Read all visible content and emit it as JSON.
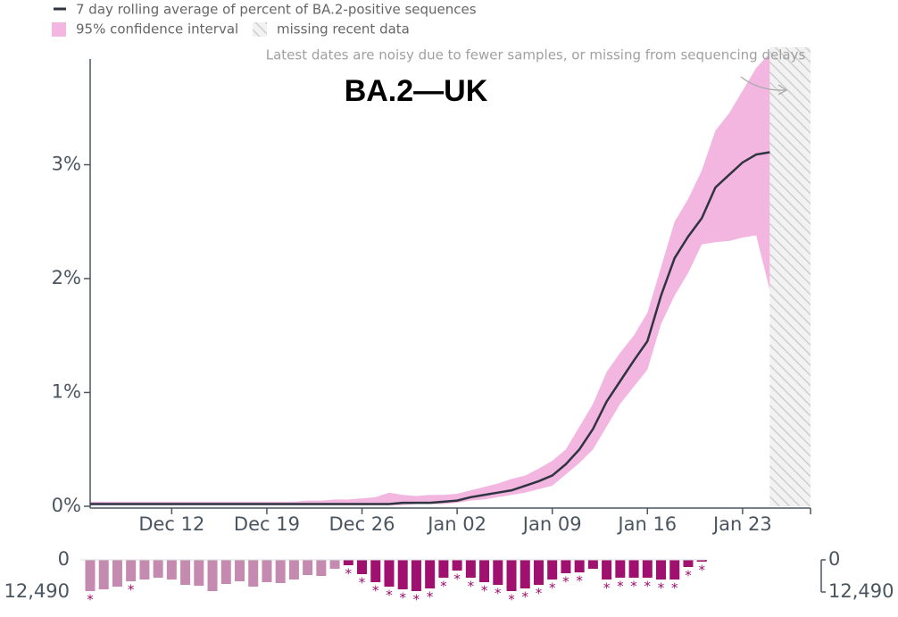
{
  "chart_data": {
    "type": "line",
    "title": "BA.2—UK",
    "annotation": "Latest dates are noisy due to fewer samples, or missing from sequencing delays",
    "categories": [
      null,
      null,
      null,
      null,
      null,
      null,
      "Dec 12",
      null,
      null,
      null,
      null,
      null,
      null,
      "Dec 19",
      null,
      null,
      null,
      null,
      null,
      null,
      "Dec 26",
      null,
      null,
      null,
      null,
      null,
      null,
      "Jan 02",
      null,
      null,
      null,
      null,
      null,
      null,
      "Jan 09",
      null,
      null,
      null,
      null,
      null,
      null,
      "Jan 16",
      null,
      null,
      null,
      null,
      null,
      null,
      "Jan 23",
      null,
      null,
      null,
      null,
      null
    ],
    "series": [
      {
        "name": "7 day rolling average of percent of BA.2-positive sequences",
        "color": "#2e3440",
        "values": [
          0.02,
          0.02,
          0.02,
          0.02,
          0.02,
          0.02,
          0.02,
          0.02,
          0.02,
          0.02,
          0.02,
          0.02,
          0.02,
          0.02,
          0.02,
          0.02,
          0.02,
          0.02,
          0.02,
          0.02,
          0.02,
          0.02,
          0.02,
          0.03,
          0.03,
          0.03,
          0.04,
          0.05,
          0.08,
          0.1,
          0.12,
          0.14,
          0.18,
          0.22,
          0.27,
          0.37,
          0.5,
          0.68,
          0.92,
          1.1,
          1.28,
          1.45,
          1.85,
          2.18,
          2.37,
          2.53,
          2.8,
          2.91,
          3.02,
          3.09,
          3.11,
          null,
          null,
          null
        ]
      }
    ],
    "band": {
      "name": "95% confidence interval",
      "color": "#f2b6e0",
      "lower": [
        0.01,
        0.01,
        0.01,
        0.01,
        0.01,
        0.01,
        0.01,
        0.01,
        0.01,
        0.01,
        0.01,
        0.01,
        0.01,
        0.01,
        0.01,
        0.01,
        0.01,
        0.01,
        0.01,
        0.01,
        0.01,
        0.01,
        0.01,
        0.01,
        0.02,
        0.02,
        0.02,
        0.03,
        0.05,
        0.06,
        0.08,
        0.1,
        0.12,
        0.15,
        0.18,
        0.28,
        0.38,
        0.5,
        0.7,
        0.9,
        1.05,
        1.2,
        1.6,
        1.85,
        2.05,
        2.3,
        2.32,
        2.33,
        2.36,
        2.38,
        1.9,
        null,
        null,
        null
      ],
      "upper": [
        0.04,
        0.04,
        0.04,
        0.04,
        0.04,
        0.04,
        0.04,
        0.04,
        0.04,
        0.04,
        0.04,
        0.04,
        0.04,
        0.04,
        0.04,
        0.04,
        0.05,
        0.05,
        0.06,
        0.06,
        0.07,
        0.08,
        0.12,
        0.1,
        0.09,
        0.1,
        0.1,
        0.11,
        0.14,
        0.17,
        0.2,
        0.24,
        0.27,
        0.33,
        0.4,
        0.5,
        0.7,
        0.9,
        1.18,
        1.35,
        1.5,
        1.7,
        2.1,
        2.5,
        2.7,
        2.95,
        3.3,
        3.45,
        3.65,
        3.85,
        3.98,
        null,
        null,
        null
      ]
    },
    "missing": {
      "name": "missing recent data"
    },
    "ylim": [
      0,
      4
    ],
    "yticks": [
      {
        "value": 0,
        "label": "0%"
      },
      {
        "value": 1,
        "label": "1%"
      },
      {
        "value": 2,
        "label": "2%"
      },
      {
        "value": 3,
        "label": "3%"
      }
    ],
    "bars": {
      "type": "bar",
      "flag_label": "*",
      "values": [
        12145,
        11451,
        10410,
        8328,
        7634,
        6940,
        7634,
        9716,
        10063,
        12145,
        9369,
        8328,
        10410,
        8675,
        9022,
        7634,
        5899,
        6246,
        3470,
        2082,
        5552,
        8675,
        10410,
        11451,
        12145,
        11104,
        6940,
        4164,
        6940,
        8675,
        9716,
        12145,
        11104,
        9716,
        7634,
        5205,
        4858,
        3470,
        7634,
        6940,
        6940,
        6940,
        7634,
        7634,
        2776,
        694,
        null,
        null,
        null,
        null,
        null,
        null,
        null,
        null
      ],
      "colors": [
        "#c48ab0",
        "#c48ab0",
        "#c48ab0",
        "#c48ab0",
        "#c48ab0",
        "#c48ab0",
        "#c48ab0",
        "#c48ab0",
        "#c48ab0",
        "#c48ab0",
        "#c48ab0",
        "#c48ab0",
        "#c48ab0",
        "#c48ab0",
        "#c48ab0",
        "#c48ab0",
        "#c48ab0",
        "#c48ab0",
        "#c48ab0",
        "#a0106e",
        "#a0106e",
        "#a0106e",
        "#a0106e",
        "#a0106e",
        "#a0106e",
        "#a0106e",
        "#a0106e",
        "#a0106e",
        "#a0106e",
        "#a0106e",
        "#a0106e",
        "#a0106e",
        "#a0106e",
        "#a0106e",
        "#a0106e",
        "#a0106e",
        "#a0106e",
        "#a0106e",
        "#a0106e",
        "#a0106e",
        "#a0106e",
        "#a0106e",
        "#a0106e",
        "#a0106e",
        "#a0106e",
        "#a0106e",
        null,
        null,
        null,
        null,
        null,
        null,
        null,
        null
      ],
      "flagged": [
        true,
        false,
        false,
        true,
        false,
        false,
        false,
        false,
        false,
        false,
        false,
        false,
        false,
        false,
        false,
        false,
        false,
        false,
        false,
        true,
        true,
        true,
        true,
        true,
        true,
        true,
        true,
        true,
        true,
        true,
        true,
        true,
        true,
        true,
        true,
        true,
        true,
        false,
        true,
        true,
        true,
        true,
        true,
        true,
        true,
        true,
        false,
        false,
        false,
        false,
        false,
        false,
        false,
        false
      ],
      "ylim": [
        0,
        12490
      ],
      "yticks": [
        0,
        {
          "value": 12490,
          "label": "12,490"
        }
      ]
    }
  }
}
